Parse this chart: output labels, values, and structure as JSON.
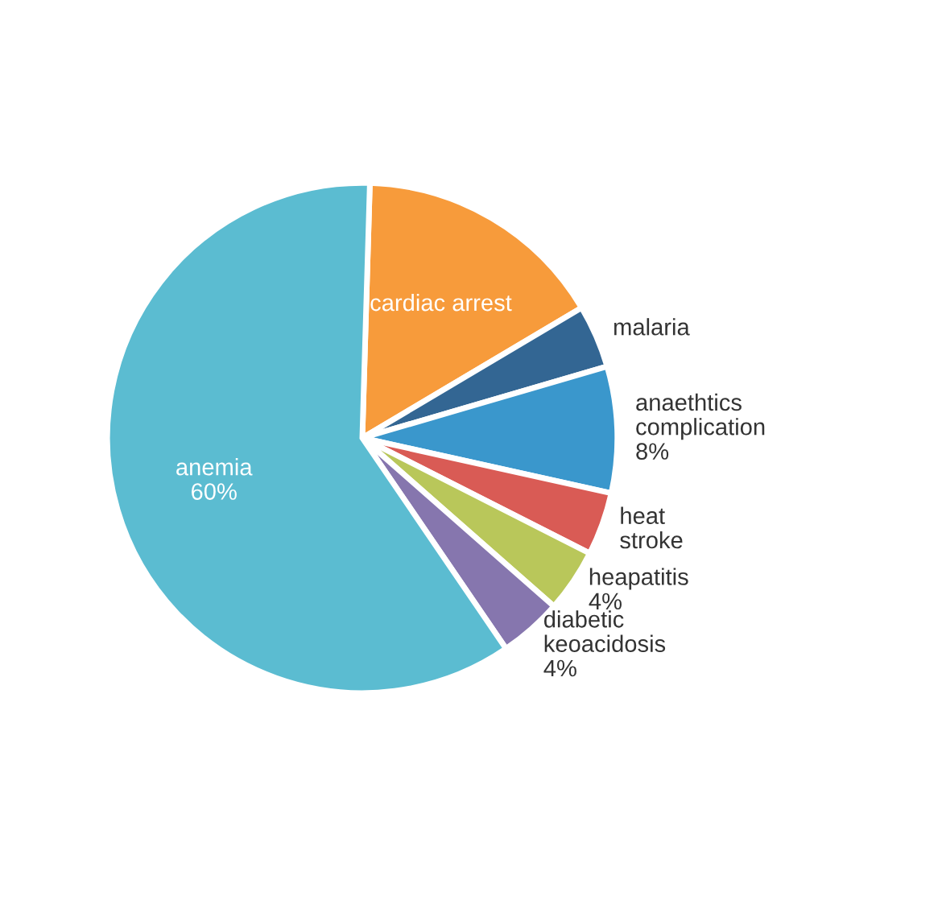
{
  "chart_data": {
    "type": "pie",
    "categories": [
      "cardiac arrest",
      "malaria",
      "anaethtics complication",
      "heat stroke",
      "heapatitis",
      "diabetic keoacidosis",
      "anemia"
    ],
    "values": [
      16,
      4,
      8,
      4,
      4,
      4,
      60
    ],
    "value_labels": [
      null,
      null,
      "8%",
      null,
      "4%",
      "4%",
      "60%"
    ],
    "colors": [
      "#f79b3b",
      "#336693",
      "#3a97cc",
      "#d95b55",
      "#b9c75a",
      "#8676ae",
      "#5bbcd1"
    ]
  }
}
